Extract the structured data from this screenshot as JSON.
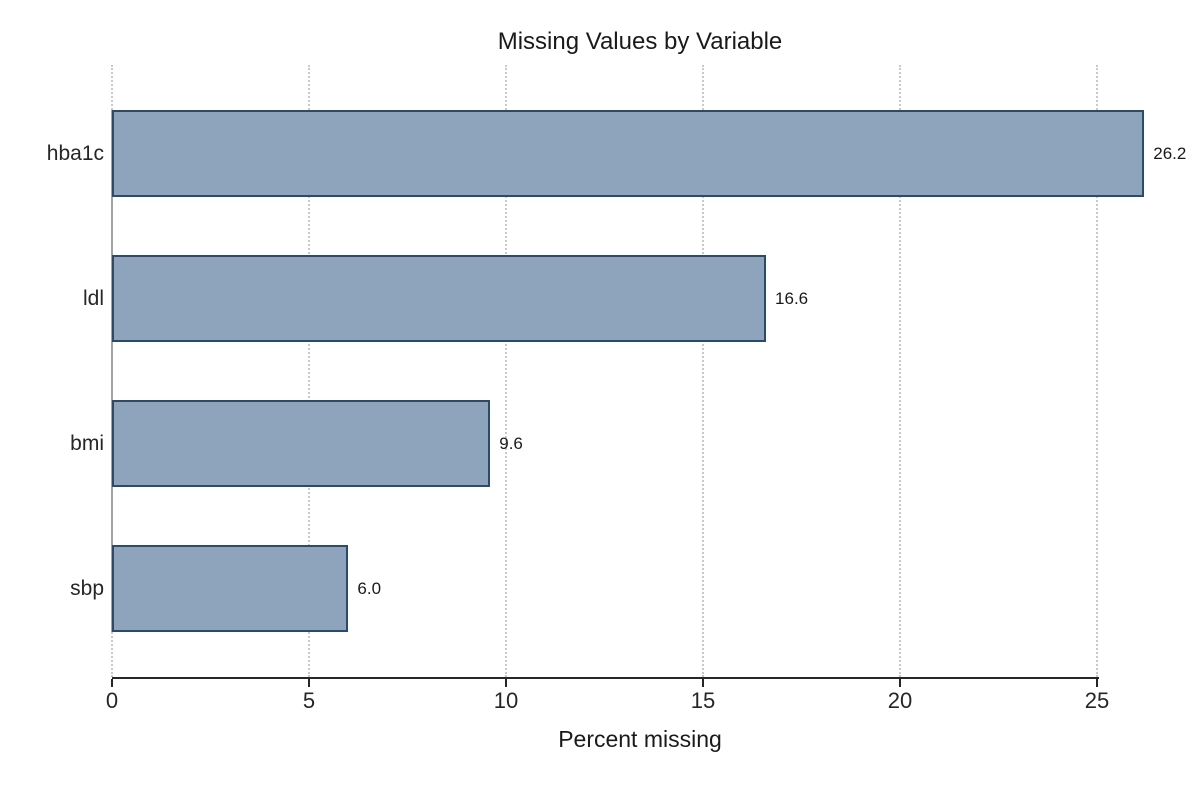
{
  "chart_data": {
    "type": "bar",
    "orientation": "horizontal",
    "title": "Missing Values by Variable",
    "xlabel": "Percent missing",
    "ylabel": "",
    "categories": [
      "hba1c",
      "ldl",
      "bmi",
      "sbp"
    ],
    "values": [
      26.2,
      16.6,
      9.6,
      6.0
    ],
    "value_labels": [
      "26.2",
      "16.6",
      "9.6",
      "6.0"
    ],
    "xticks": [
      0,
      5,
      10,
      15,
      20,
      25
    ],
    "xtick_labels": [
      "0",
      "5",
      "10",
      "15",
      "20",
      "25"
    ],
    "xlim": [
      0,
      26.8
    ],
    "grid": "vertical-dotted",
    "legend": "none",
    "colors": {
      "bar_fill": "#8ea4bc",
      "bar_border": "#2e4a6b",
      "gridline": "#c9c9c9",
      "left_spine": "#a3a3a3",
      "bottom_axis": "#262626",
      "text": "#262626",
      "background": "#ffffff"
    }
  }
}
